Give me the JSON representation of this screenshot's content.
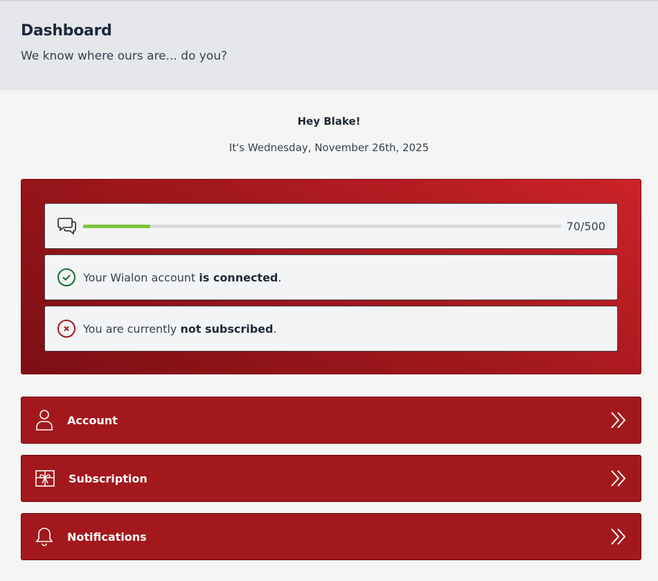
{
  "header": {
    "title": "Dashboard",
    "subtitle": "We know where ours are... do you?"
  },
  "greeting": "Hey Blake!",
  "date": "It's Wednesday, November 26th, 2025",
  "usage": {
    "used": 70,
    "limit": 500,
    "label": "70/500"
  },
  "statuses": [
    {
      "state": "ok",
      "prefix": "Your Wialon account ",
      "emphasis": "is connected",
      "suffix": "."
    },
    {
      "state": "error",
      "prefix": "You are currently ",
      "emphasis": "not subscribed",
      "suffix": "."
    }
  ],
  "menu": [
    {
      "label": "Account"
    },
    {
      "label": "Subscription"
    },
    {
      "label": "Notifications"
    }
  ]
}
